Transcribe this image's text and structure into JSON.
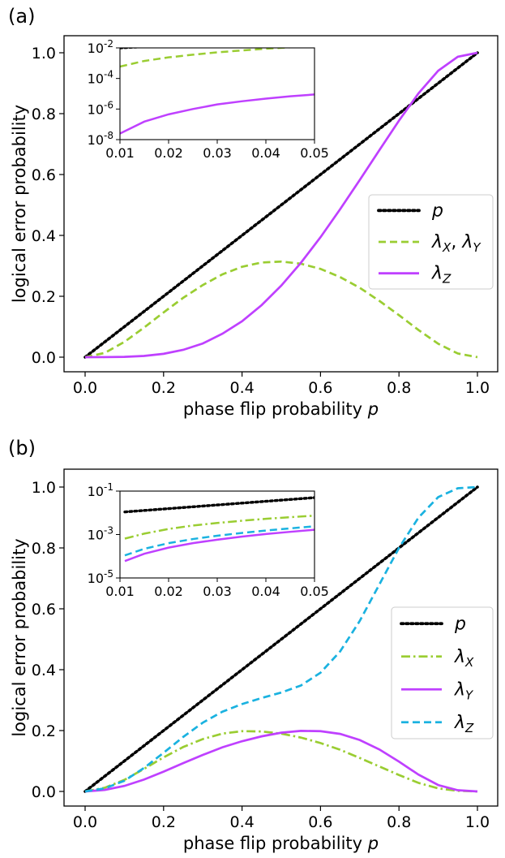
{
  "panels": [
    {
      "id": "a",
      "label": "(a)",
      "xlabel": "phase flip probability",
      "xlabel_var": "p",
      "ylabel": "logical error probability",
      "main_chart": {
        "type": "line",
        "xlim": [
          0,
          1
        ],
        "ylim": [
          0,
          1
        ],
        "xticks": [
          "0.0",
          "0.2",
          "0.4",
          "0.6",
          "0.8",
          "1.0"
        ],
        "yticks": [
          "0.0",
          "0.2",
          "0.4",
          "0.6",
          "0.8",
          "1.0"
        ],
        "legend_placement": "center-right",
        "series": [
          {
            "name": "p",
            "sub": "",
            "color": "#000000",
            "style": "dotted",
            "x": [
              0,
              0.2,
              0.4,
              0.6,
              0.8,
              1.0
            ],
            "y": [
              0,
              0.2,
              0.4,
              0.6,
              0.8,
              1.0
            ]
          },
          {
            "name": "λ",
            "sub": "X",
            "name2": "λ",
            "sub2": "Y",
            "color": "#9acd32",
            "style": "dashed",
            "x": [
              0,
              0.05,
              0.1,
              0.15,
              0.2,
              0.25,
              0.3,
              0.35,
              0.4,
              0.45,
              0.5,
              0.55,
              0.6,
              0.65,
              0.7,
              0.75,
              0.8,
              0.85,
              0.9,
              0.95,
              1.0
            ],
            "y": [
              0,
              0.014,
              0.05,
              0.097,
              0.147,
              0.195,
              0.237,
              0.272,
              0.297,
              0.311,
              0.314,
              0.307,
              0.29,
              0.263,
              0.228,
              0.185,
              0.138,
              0.089,
              0.044,
              0.012,
              0
            ]
          },
          {
            "name": "λ",
            "sub": "Z",
            "color": "#bf40ff",
            "style": "solid",
            "x": [
              0,
              0.05,
              0.1,
              0.15,
              0.2,
              0.25,
              0.3,
              0.35,
              0.4,
              0.45,
              0.5,
              0.55,
              0.6,
              0.65,
              0.7,
              0.75,
              0.8,
              0.85,
              0.9,
              0.95,
              1.0
            ],
            "y": [
              0,
              0.0001,
              0.001,
              0.004,
              0.011,
              0.024,
              0.045,
              0.077,
              0.118,
              0.171,
              0.235,
              0.31,
              0.394,
              0.486,
              0.582,
              0.68,
              0.777,
              0.867,
              0.941,
              0.987,
              1.0
            ]
          }
        ]
      },
      "inset": {
        "type": "line",
        "yscale": "log",
        "xlim": [
          0.01,
          0.05
        ],
        "ylim_log10": [
          -8,
          -2
        ],
        "xticks": [
          "0.01",
          "0.02",
          "0.03",
          "0.04",
          "0.05"
        ],
        "yticks": [
          {
            "base": "10",
            "exp": "-2"
          },
          {
            "base": "10",
            "exp": "-4"
          },
          {
            "base": "10",
            "exp": "-6"
          },
          {
            "base": "10",
            "exp": "-8"
          }
        ],
        "series": [
          {
            "name": "p",
            "color": "#000000",
            "style": "dotted",
            "x": [
              0.01,
              0.05
            ],
            "y": [
              0.01,
              0.05
            ]
          },
          {
            "name": "λX,λY",
            "color": "#9acd32",
            "style": "dashed",
            "x": [
              0.01,
              0.015,
              0.02,
              0.025,
              0.03,
              0.035,
              0.04,
              0.045,
              0.05
            ],
            "y": [
              0.0006,
              0.0014,
              0.0024,
              0.0036,
              0.0051,
              0.0068,
              0.0088,
              0.0109,
              0.0133
            ]
          },
          {
            "name": "λZ",
            "color": "#bf40ff",
            "style": "solid",
            "x": [
              0.01,
              0.015,
              0.02,
              0.025,
              0.03,
              0.035,
              0.04,
              0.045,
              0.05
            ],
            "y": [
              2.5e-08,
              1.5e-07,
              4.5e-07,
              1e-06,
              2e-06,
              3.2e-06,
              4.8e-06,
              6.8e-06,
              9e-06
            ]
          }
        ]
      }
    },
    {
      "id": "b",
      "label": "(b)",
      "xlabel": "phase flip probability",
      "xlabel_var": "p",
      "ylabel": "logical error probability",
      "main_chart": {
        "type": "line",
        "xlim": [
          0,
          1
        ],
        "ylim": [
          0,
          1
        ],
        "xticks": [
          "0.0",
          "0.2",
          "0.4",
          "0.6",
          "0.8",
          "1.0"
        ],
        "yticks": [
          "0.0",
          "0.2",
          "0.4",
          "0.6",
          "0.8",
          "1.0"
        ],
        "legend_placement": "center-right",
        "series": [
          {
            "name": "p",
            "sub": "",
            "color": "#000000",
            "style": "dotted",
            "x": [
              0,
              0.2,
              0.4,
              0.6,
              0.8,
              1.0
            ],
            "y": [
              0,
              0.2,
              0.4,
              0.6,
              0.8,
              1.0
            ]
          },
          {
            "name": "λ",
            "sub": "X",
            "color": "#9acd32",
            "style": "dashdot",
            "x": [
              0,
              0.05,
              0.1,
              0.15,
              0.2,
              0.25,
              0.3,
              0.35,
              0.4,
              0.45,
              0.5,
              0.55,
              0.6,
              0.65,
              0.7,
              0.75,
              0.8,
              0.85,
              0.9,
              0.95,
              1.0
            ],
            "y": [
              0,
              0.012,
              0.038,
              0.074,
              0.112,
              0.146,
              0.172,
              0.19,
              0.198,
              0.197,
              0.19,
              0.177,
              0.159,
              0.137,
              0.11,
              0.082,
              0.054,
              0.028,
              0.01,
              0.002,
              0
            ]
          },
          {
            "name": "λ",
            "sub": "Y",
            "color": "#bf40ff",
            "style": "solid",
            "x": [
              0,
              0.05,
              0.1,
              0.15,
              0.2,
              0.25,
              0.3,
              0.35,
              0.4,
              0.45,
              0.5,
              0.55,
              0.6,
              0.65,
              0.7,
              0.75,
              0.8,
              0.85,
              0.9,
              0.95,
              1.0
            ],
            "y": [
              0,
              0.005,
              0.018,
              0.039,
              0.065,
              0.093,
              0.12,
              0.145,
              0.165,
              0.181,
              0.193,
              0.199,
              0.198,
              0.189,
              0.169,
              0.138,
              0.098,
              0.055,
              0.021,
              0.004,
              0
            ]
          },
          {
            "name": "λ",
            "sub": "Z",
            "color": "#1ab2e0",
            "style": "dashed",
            "x": [
              0,
              0.05,
              0.1,
              0.15,
              0.2,
              0.25,
              0.3,
              0.35,
              0.4,
              0.45,
              0.5,
              0.55,
              0.6,
              0.65,
              0.7,
              0.75,
              0.8,
              0.85,
              0.9,
              0.95,
              1.0
            ],
            "y": [
              0,
              0.01,
              0.035,
              0.077,
              0.127,
              0.179,
              0.226,
              0.262,
              0.287,
              0.307,
              0.325,
              0.348,
              0.39,
              0.46,
              0.56,
              0.68,
              0.8,
              0.9,
              0.967,
              0.996,
              1.0
            ]
          }
        ]
      },
      "inset": {
        "type": "line",
        "yscale": "log",
        "xlim": [
          0.01,
          0.05
        ],
        "ylim_log10": [
          -5,
          -1
        ],
        "xticks": [
          "0.01",
          "0.02",
          "0.03",
          "0.04",
          "0.05"
        ],
        "yticks": [
          {
            "base": "10",
            "exp": "-1"
          },
          {
            "base": "10",
            "exp": "-3"
          },
          {
            "base": "10",
            "exp": "-5"
          }
        ],
        "series": [
          {
            "name": "p",
            "color": "#000000",
            "style": "dotted",
            "x": [
              0.011,
              0.05
            ],
            "y": [
              0.011,
              0.05
            ]
          },
          {
            "name": "λX",
            "color": "#9acd32",
            "style": "dashdot",
            "x": [
              0.011,
              0.015,
              0.02,
              0.025,
              0.03,
              0.035,
              0.04,
              0.045,
              0.05
            ],
            "y": [
              0.00065,
              0.0011,
              0.0018,
              0.0026,
              0.0034,
              0.0043,
              0.0053,
              0.0063,
              0.0074
            ]
          },
          {
            "name": "λZ",
            "color": "#1ab2e0",
            "style": "dashed",
            "x": [
              0.011,
              0.015,
              0.02,
              0.025,
              0.03,
              0.035,
              0.04,
              0.045,
              0.05
            ],
            "y": [
              0.00011,
              0.00022,
              0.0004,
              0.00062,
              0.00088,
              0.00118,
              0.00153,
              0.00192,
              0.0024
            ]
          },
          {
            "name": "λY",
            "color": "#bf40ff",
            "style": "solid",
            "x": [
              0.011,
              0.015,
              0.02,
              0.025,
              0.03,
              0.035,
              0.04,
              0.045,
              0.05
            ],
            "y": [
              6e-05,
              0.00013,
              0.00025,
              0.0004,
              0.00058,
              0.0008,
              0.00105,
              0.00133,
              0.00165
            ]
          }
        ]
      }
    }
  ]
}
